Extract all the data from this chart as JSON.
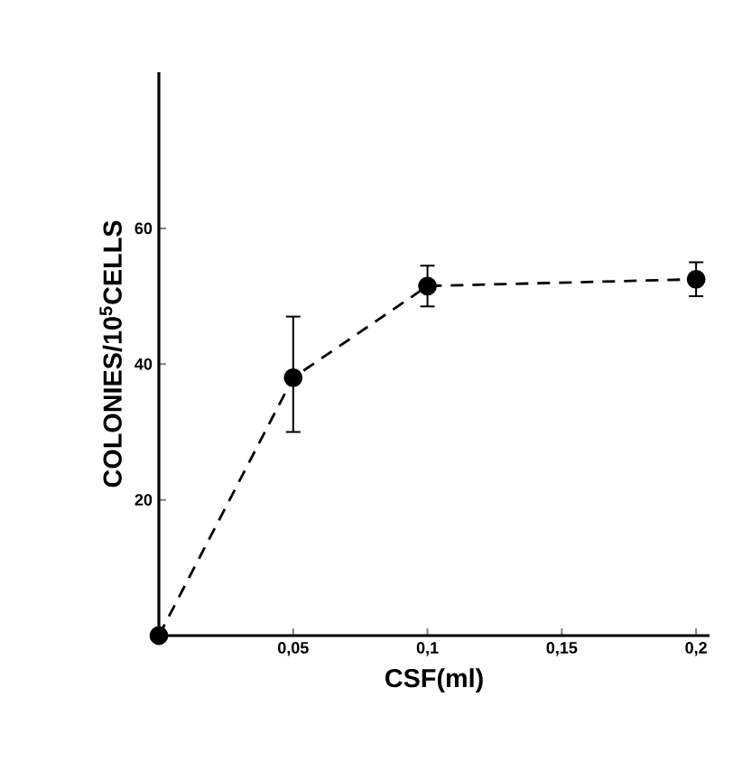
{
  "chart_data": {
    "type": "line",
    "xlabel": "CSF(ml)",
    "ylabel": "COLONIES/10$^{5}$CELLS",
    "x": [
      0,
      0.05,
      0.1,
      0.2
    ],
    "series": [
      {
        "color": "#000000",
        "values": [
          0,
          38,
          51.5,
          52.5
        ],
        "errors": [
          null,
          [
            30,
            47
          ],
          [
            48.5,
            54.5
          ],
          [
            50,
            55
          ]
        ]
      }
    ],
    "xlim": [
      0,
      0.205
    ],
    "ylim": [
      0,
      83
    ],
    "xticks": [
      {
        "value": 0.05,
        "label": "0,05"
      },
      {
        "value": 0.1,
        "label": "0,1"
      },
      {
        "value": 0.15,
        "label": "0,15"
      },
      {
        "value": 0.2,
        "label": "0,2"
      }
    ],
    "yticks": [
      20,
      40,
      60
    ],
    "grid": false,
    "marker": "circle",
    "line_style": "dashed"
  }
}
